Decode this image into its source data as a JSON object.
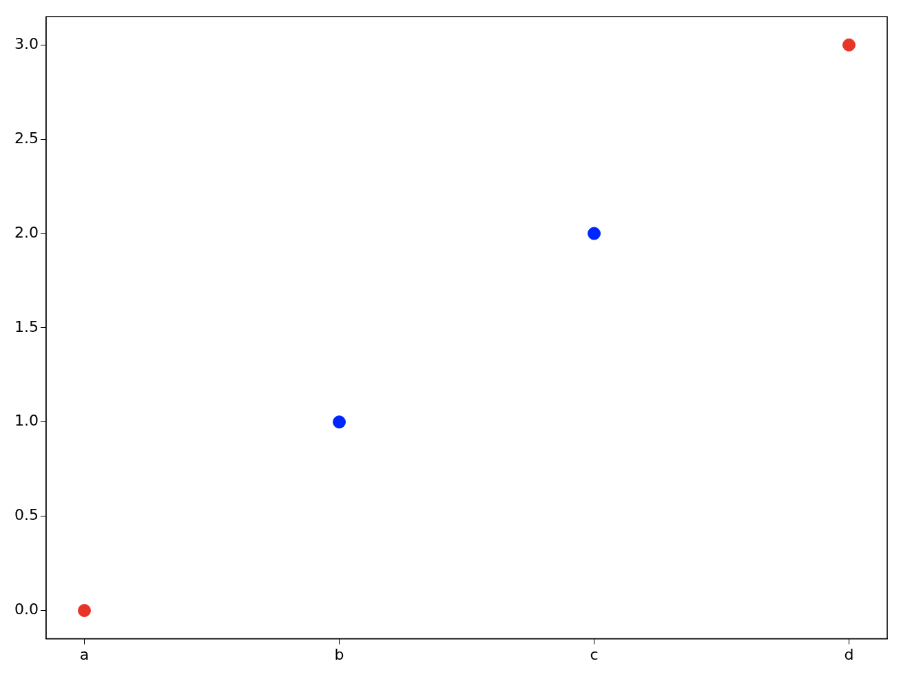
{
  "chart_data": {
    "type": "scatter",
    "categories": [
      "a",
      "b",
      "c",
      "d"
    ],
    "values": [
      0,
      1,
      2,
      3
    ],
    "colors": [
      "#e8352a",
      "#0026ff",
      "#0026ff",
      "#e8352a"
    ],
    "ylim": [
      -0.15,
      3.15
    ],
    "yticks": [
      {
        "value": 0,
        "label": "0.0"
      },
      {
        "value": 0.5,
        "label": "0.5"
      },
      {
        "value": 1,
        "label": "1.0"
      },
      {
        "value": 1.5,
        "label": "1.5"
      },
      {
        "value": 2,
        "label": "2.0"
      },
      {
        "value": 2.5,
        "label": "2.5"
      },
      {
        "value": 3,
        "label": "3.0"
      }
    ],
    "grid": false,
    "legend": false,
    "marker": "circle"
  }
}
